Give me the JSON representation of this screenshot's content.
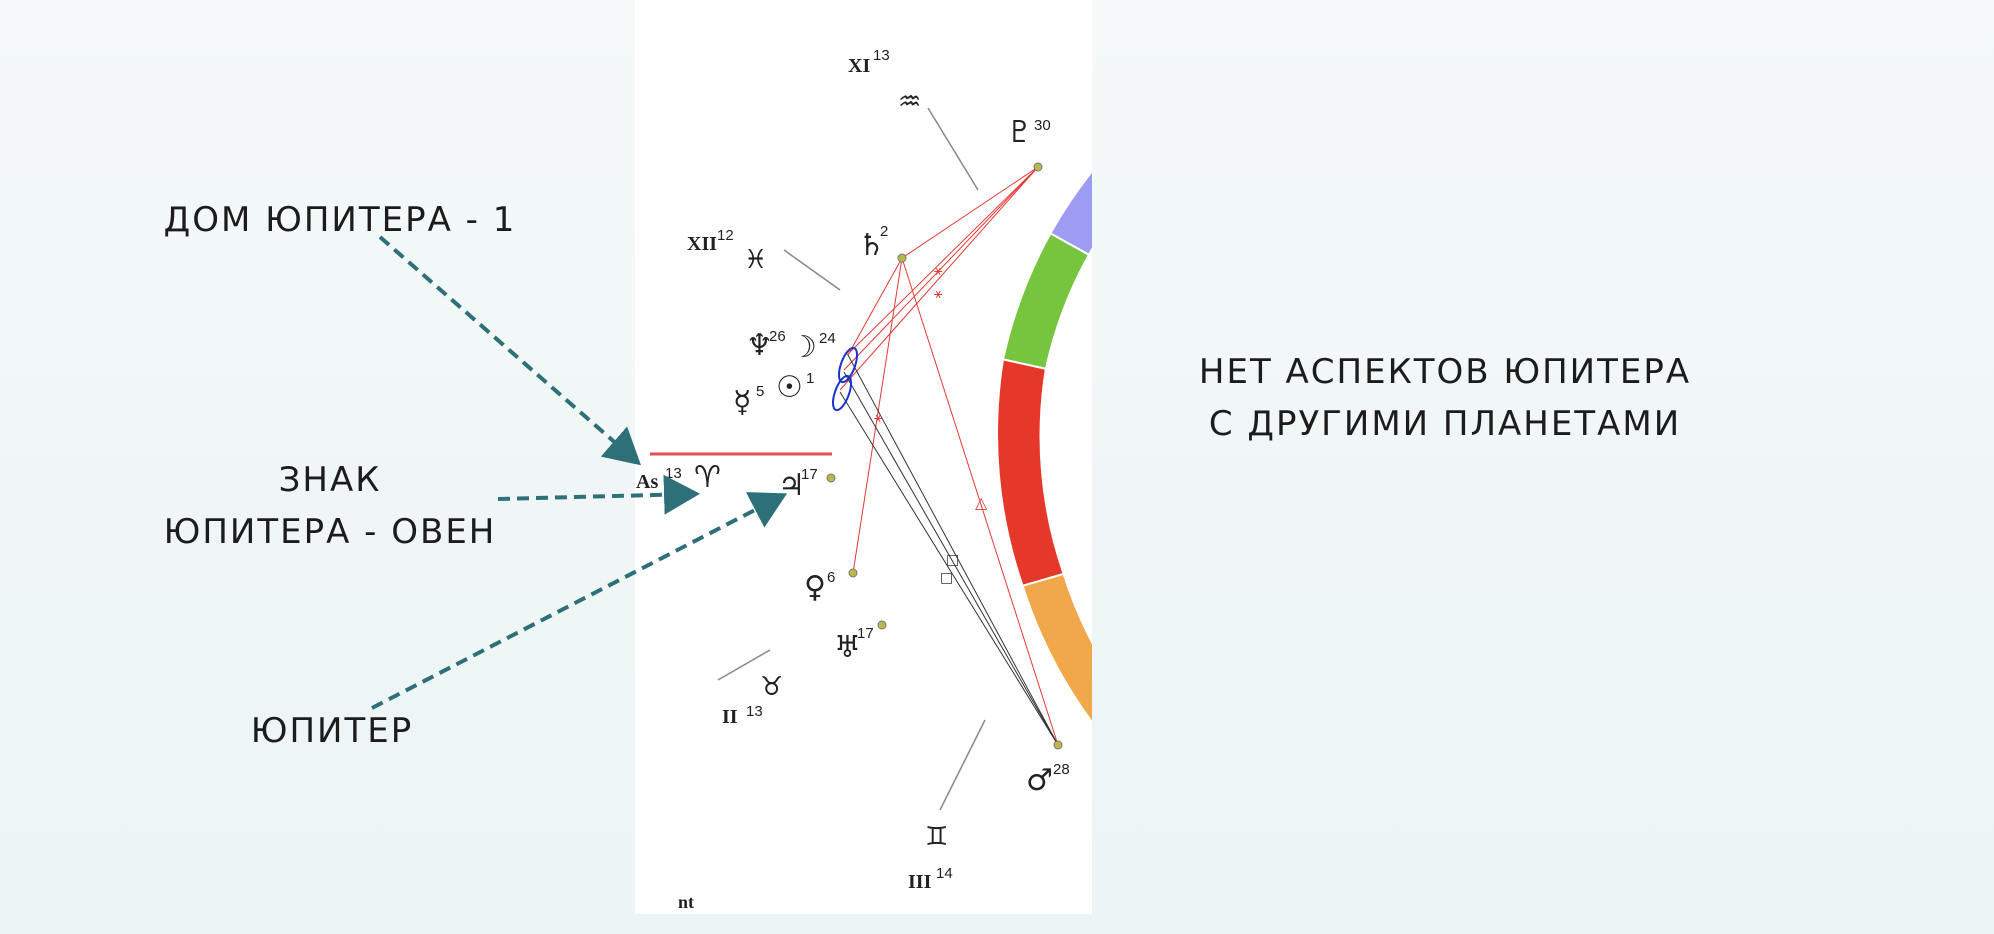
{
  "annotations": {
    "house": "ДОМ ЮПИТЕРА - 1",
    "sign_line1": "ЗНАК",
    "sign_line2": "ЮПИТЕРА - ОВЕН",
    "planet": "ЮПИТЕР",
    "aspects_line1": "НЕТ АСПЕКТОВ ЮПИТЕРА",
    "aspects_line2": "С ДРУГИМИ ПЛАНЕТАМИ"
  },
  "colors": {
    "arrow": "#2e7078",
    "aries": "#e5372a",
    "pisces": "#77c43e",
    "aquarius": "#9d9cf2",
    "taurus": "#f0a84a",
    "gemini": "#9d9cf2",
    "aspect_red": "#e53935",
    "aspect_black": "#333333",
    "highlight": "#1a33cc"
  },
  "chart": {
    "houses": [
      {
        "roman": "XI",
        "deg": "13"
      },
      {
        "roman": "XII",
        "deg": "12"
      },
      {
        "roman": "As",
        "deg": "13"
      },
      {
        "roman": "II",
        "deg": "13"
      },
      {
        "roman": "III",
        "deg": "14"
      }
    ],
    "signs": [
      {
        "name": "aquarius",
        "glyph": "♒"
      },
      {
        "name": "pisces",
        "glyph": "♓"
      },
      {
        "name": "aries",
        "glyph": "♈"
      },
      {
        "name": "taurus",
        "glyph": "♉"
      },
      {
        "name": "gemini",
        "glyph": "♊"
      }
    ],
    "planets": [
      {
        "name": "pluto",
        "glyph": "♇",
        "deg": "30"
      },
      {
        "name": "saturn",
        "glyph": "♄",
        "deg": "2"
      },
      {
        "name": "neptune",
        "glyph": "♆",
        "deg": "26"
      },
      {
        "name": "moon",
        "glyph": "☽",
        "deg": "24"
      },
      {
        "name": "mercury",
        "glyph": "☿",
        "deg": "5"
      },
      {
        "name": "sun",
        "glyph": "☉",
        "deg": "1"
      },
      {
        "name": "jupiter",
        "glyph": "♃",
        "deg": "17"
      },
      {
        "name": "venus",
        "glyph": "♀",
        "deg": "6"
      },
      {
        "name": "uranus",
        "glyph": "♅",
        "deg": "17"
      },
      {
        "name": "mars",
        "glyph": "♂",
        "deg": "28"
      }
    ],
    "footer": "nt"
  }
}
